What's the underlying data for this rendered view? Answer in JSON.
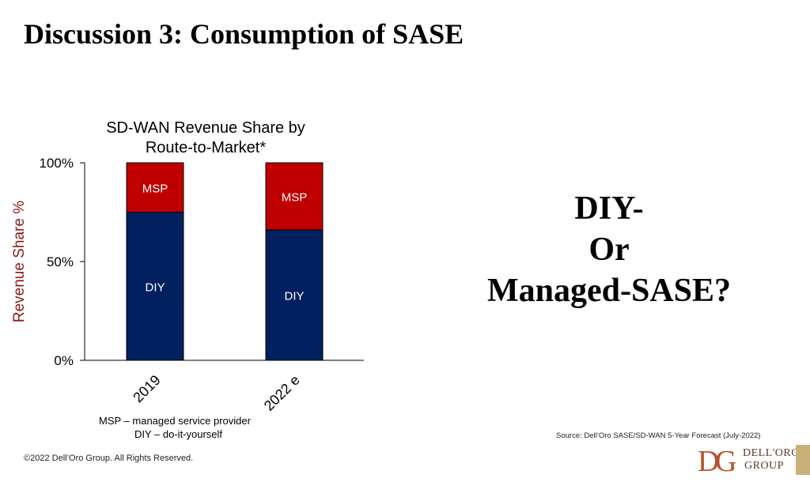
{
  "slide": {
    "title": "Discussion 3: Consumption of SASE",
    "question": [
      "DIY-",
      "Or",
      "Managed-SASE?"
    ],
    "source": "Source: Dell’Oro SASE/SD-WAN 5-Year Forecast (July-2022)",
    "copyright": "©2022 Dell’Oro Group. All Rights Reserved.",
    "legend_notes": [
      "MSP – managed service provider",
      "DIY – do-it-yourself"
    ]
  },
  "logo": {
    "monogram": "DG",
    "line1": "DELL'ORO",
    "line2": "GROUP"
  },
  "colors": {
    "diy": "#002060",
    "msp": "#c00000",
    "ylabel": "#8b1a1a",
    "logo": "#b5512a",
    "logo_accent": "#c8b07a"
  },
  "chart_data": {
    "type": "bar",
    "stacked": true,
    "title": [
      "SD-WAN Revenue Share by",
      "Route-to-Market*"
    ],
    "ylabel": "Revenue Share %",
    "xlabel": "",
    "categories": [
      "2019",
      "2022 e"
    ],
    "series": [
      {
        "name": "DIY",
        "values": [
          75,
          66
        ]
      },
      {
        "name": "MSP",
        "values": [
          25,
          34
        ]
      }
    ],
    "ylim": [
      0,
      100
    ],
    "yticks": [
      "0%",
      "50%",
      "100%"
    ],
    "ytick_values": [
      0,
      50,
      100
    ],
    "grid": false,
    "legend": "none (labels inside bars)"
  }
}
